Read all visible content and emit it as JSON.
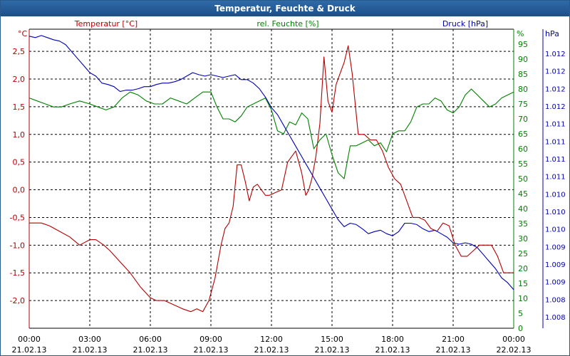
{
  "window": {
    "title": "Temperatur, Feuchte & Druck"
  },
  "colors": {
    "temp": "#b40000",
    "hum": "#008000",
    "press": "#0000b4",
    "grid": "#000000"
  },
  "chart_data": {
    "type": "line",
    "title": "Temperatur, Feuchte & Druck",
    "x_ticks": [
      {
        "time": "00:00",
        "date": "21.02.13"
      },
      {
        "time": "03:00",
        "date": "21.02.13"
      },
      {
        "time": "06:00",
        "date": "21.02.13"
      },
      {
        "time": "09:00",
        "date": "21.02.13"
      },
      {
        "time": "12:00",
        "date": "21.02.13"
      },
      {
        "time": "15:00",
        "date": "21.02.13"
      },
      {
        "time": "18:00",
        "date": "21.02.13"
      },
      {
        "time": "21:00",
        "date": "21.02.13"
      },
      {
        "time": "00:00",
        "date": "22.02.13"
      }
    ],
    "xlim": [
      0,
      24
    ],
    "grid": true,
    "axes": {
      "temp": {
        "label": "Temperatur [°C]",
        "unit": "°C",
        "ylim": [
          -2.5,
          2.9
        ],
        "ticks": [
          "2,5",
          "2,0",
          "1,5",
          "1,0",
          "0,5",
          "0,0",
          "-0,5",
          "-1,0",
          "-1,5",
          "-2,0"
        ],
        "tick_values": [
          2.5,
          2.0,
          1.5,
          1.0,
          0.5,
          0.0,
          -0.5,
          -1.0,
          -1.5,
          -2.0
        ]
      },
      "hum": {
        "label": "rel. Feuchte [%]",
        "unit": "%",
        "ylim": [
          0,
          100
        ],
        "ticks": [
          "95",
          "90",
          "85",
          "80",
          "75",
          "70",
          "65",
          "60",
          "55",
          "50",
          "45",
          "40",
          "35",
          "30",
          "25",
          "20",
          "15",
          "10",
          "5",
          "0"
        ],
        "tick_values": [
          95,
          90,
          85,
          80,
          75,
          70,
          65,
          60,
          55,
          50,
          45,
          40,
          35,
          30,
          25,
          20,
          15,
          10,
          5,
          0
        ]
      },
      "press": {
        "label": "Druck [hPa]",
        "unit": "hPa",
        "ticks": [
          "1.012",
          "1.012",
          "1.012",
          "1.012",
          "1.011",
          "1.011",
          "1.011",
          "1.011",
          "1.010",
          "1.010",
          "1.010",
          "1.009",
          "1.009",
          "1.009",
          "1.008",
          "1.008"
        ],
        "scale_min": 1008.0,
        "scale_max": 1012.27
      }
    },
    "series": [
      {
        "name": "Temperatur [°C]",
        "axis": "temp",
        "x": [
          0,
          0.3,
          0.6,
          1,
          1.5,
          2,
          2.5,
          3,
          3.3,
          3.7,
          4,
          4.5,
          5,
          5.5,
          6,
          6.3,
          6.7,
          7,
          7.3,
          7.6,
          8,
          8.3,
          8.6,
          8.9,
          9.2,
          9.5,
          9.7,
          9.9,
          10.1,
          10.3,
          10.5,
          10.7,
          10.9,
          11.1,
          11.3,
          11.5,
          11.7,
          11.9,
          12.2,
          12.5,
          12.8,
          13,
          13.2,
          13.5,
          13.7,
          13.85,
          14,
          14.2,
          14.4,
          14.6,
          14.8,
          15,
          15.2,
          15.4,
          15.6,
          15.8,
          16,
          16.3,
          16.6,
          16.9,
          17.2,
          17.5,
          17.8,
          18.1,
          18.4,
          18.7,
          19,
          19.3,
          19.6,
          19.9,
          20.2,
          20.5,
          20.8,
          21.1,
          21.4,
          21.7,
          22,
          22.3,
          22.6,
          22.9,
          23.2,
          23.5,
          23.8,
          24
        ],
        "values": [
          -0.6,
          -0.6,
          -0.6,
          -0.65,
          -0.75,
          -0.85,
          -1.0,
          -0.9,
          -0.9,
          -1.0,
          -1.1,
          -1.3,
          -1.5,
          -1.75,
          -1.95,
          -2.0,
          -2.0,
          -2.05,
          -2.1,
          -2.15,
          -2.2,
          -2.15,
          -2.2,
          -2.0,
          -1.6,
          -1.0,
          -0.7,
          -0.6,
          -0.3,
          0.45,
          0.45,
          0.15,
          -0.2,
          0.05,
          0.1,
          0.0,
          -0.1,
          -0.1,
          -0.05,
          0.0,
          0.5,
          0.6,
          0.7,
          0.3,
          -0.1,
          0.0,
          0.2,
          0.6,
          1.2,
          2.4,
          1.6,
          1.4,
          1.9,
          2.1,
          2.3,
          2.6,
          2.1,
          1.0,
          1.0,
          0.9,
          0.9,
          0.7,
          0.4,
          0.2,
          0.1,
          -0.2,
          -0.5,
          -0.5,
          -0.55,
          -0.7,
          -0.75,
          -0.6,
          -0.65,
          -1.0,
          -1.2,
          -1.2,
          -1.1,
          -1.0,
          -1.0,
          -1.0,
          -1.2,
          -1.5,
          -1.5,
          -1.5
        ]
      },
      {
        "name": "rel. Feuchte [%]",
        "axis": "hum",
        "x": [
          0,
          0.4,
          0.8,
          1.2,
          1.6,
          2,
          2.5,
          3,
          3.4,
          3.8,
          4.2,
          4.6,
          5,
          5.4,
          5.8,
          6.2,
          6.6,
          7,
          7.4,
          7.8,
          8.2,
          8.6,
          9,
          9.3,
          9.6,
          9.9,
          10.2,
          10.5,
          10.8,
          11.1,
          11.4,
          11.7,
          12,
          12.3,
          12.6,
          12.9,
          13.2,
          13.5,
          13.8,
          14.1,
          14.4,
          14.7,
          15,
          15.3,
          15.6,
          15.9,
          16.2,
          16.5,
          16.8,
          17.1,
          17.4,
          17.7,
          18,
          18.3,
          18.6,
          18.9,
          19.2,
          19.5,
          19.8,
          20.1,
          20.4,
          20.7,
          21,
          21.3,
          21.6,
          21.9,
          22.2,
          22.5,
          22.8,
          23.1,
          23.4,
          23.7,
          24
        ],
        "values": [
          77,
          76,
          75,
          74,
          74,
          75,
          76,
          75,
          74,
          73,
          74,
          77,
          79,
          78,
          76,
          75,
          75,
          77,
          76,
          75,
          77,
          79,
          79,
          74,
          70,
          70,
          69,
          71,
          74,
          75,
          76,
          77,
          73,
          66,
          65,
          69,
          68,
          72,
          70,
          60,
          63,
          65,
          58,
          52,
          50,
          61,
          61,
          62,
          63,
          61,
          62,
          59,
          65,
          66,
          66,
          69,
          74,
          75,
          75,
          77,
          76,
          73,
          72,
          74,
          78,
          80,
          78,
          76,
          74,
          75,
          77,
          78,
          79
        ]
      },
      {
        "name": "Druck [hPa]",
        "axis": "press",
        "x": [
          0,
          0.3,
          0.6,
          0.9,
          1.2,
          1.5,
          1.8,
          2.1,
          2.4,
          2.7,
          3,
          3.3,
          3.6,
          3.9,
          4.2,
          4.5,
          4.8,
          5.1,
          5.4,
          5.7,
          6,
          6.3,
          6.6,
          6.9,
          7.2,
          7.5,
          7.8,
          8.1,
          8.4,
          8.7,
          9,
          9.3,
          9.6,
          9.9,
          10.2,
          10.5,
          10.8,
          11.1,
          11.4,
          11.7,
          12,
          12.3,
          12.6,
          12.9,
          13.2,
          13.5,
          13.8,
          14.1,
          14.4,
          14.7,
          15,
          15.3,
          15.6,
          15.9,
          16.2,
          16.5,
          16.8,
          17.1,
          17.4,
          17.7,
          18,
          18.3,
          18.6,
          18.9,
          19.2,
          19.5,
          19.8,
          20.1,
          20.4,
          20.7,
          21,
          21.3,
          21.6,
          21.9,
          22.2,
          22.5,
          22.8,
          23.1,
          23.4,
          23.7,
          24
        ],
        "values": [
          1012.17,
          1012.15,
          1012.18,
          1012.15,
          1012.12,
          1012.1,
          1012.05,
          1011.95,
          1011.85,
          1011.75,
          1011.65,
          1011.6,
          1011.5,
          1011.48,
          1011.45,
          1011.38,
          1011.4,
          1011.4,
          1011.42,
          1011.45,
          1011.45,
          1011.48,
          1011.5,
          1011.5,
          1011.52,
          1011.55,
          1011.6,
          1011.65,
          1011.62,
          1011.6,
          1011.62,
          1011.6,
          1011.58,
          1011.6,
          1011.62,
          1011.55,
          1011.55,
          1011.5,
          1011.42,
          1011.3,
          1011.15,
          1011.05,
          1010.9,
          1010.75,
          1010.6,
          1010.45,
          1010.3,
          1010.15,
          1010.0,
          1009.85,
          1009.7,
          1009.55,
          1009.45,
          1009.5,
          1009.48,
          1009.42,
          1009.35,
          1009.38,
          1009.4,
          1009.35,
          1009.32,
          1009.38,
          1009.5,
          1009.5,
          1009.48,
          1009.42,
          1009.38,
          1009.4,
          1009.35,
          1009.3,
          1009.22,
          1009.2,
          1009.22,
          1009.2,
          1009.15,
          1009.05,
          1008.95,
          1008.85,
          1008.72,
          1008.65,
          1008.55
        ]
      }
    ]
  }
}
